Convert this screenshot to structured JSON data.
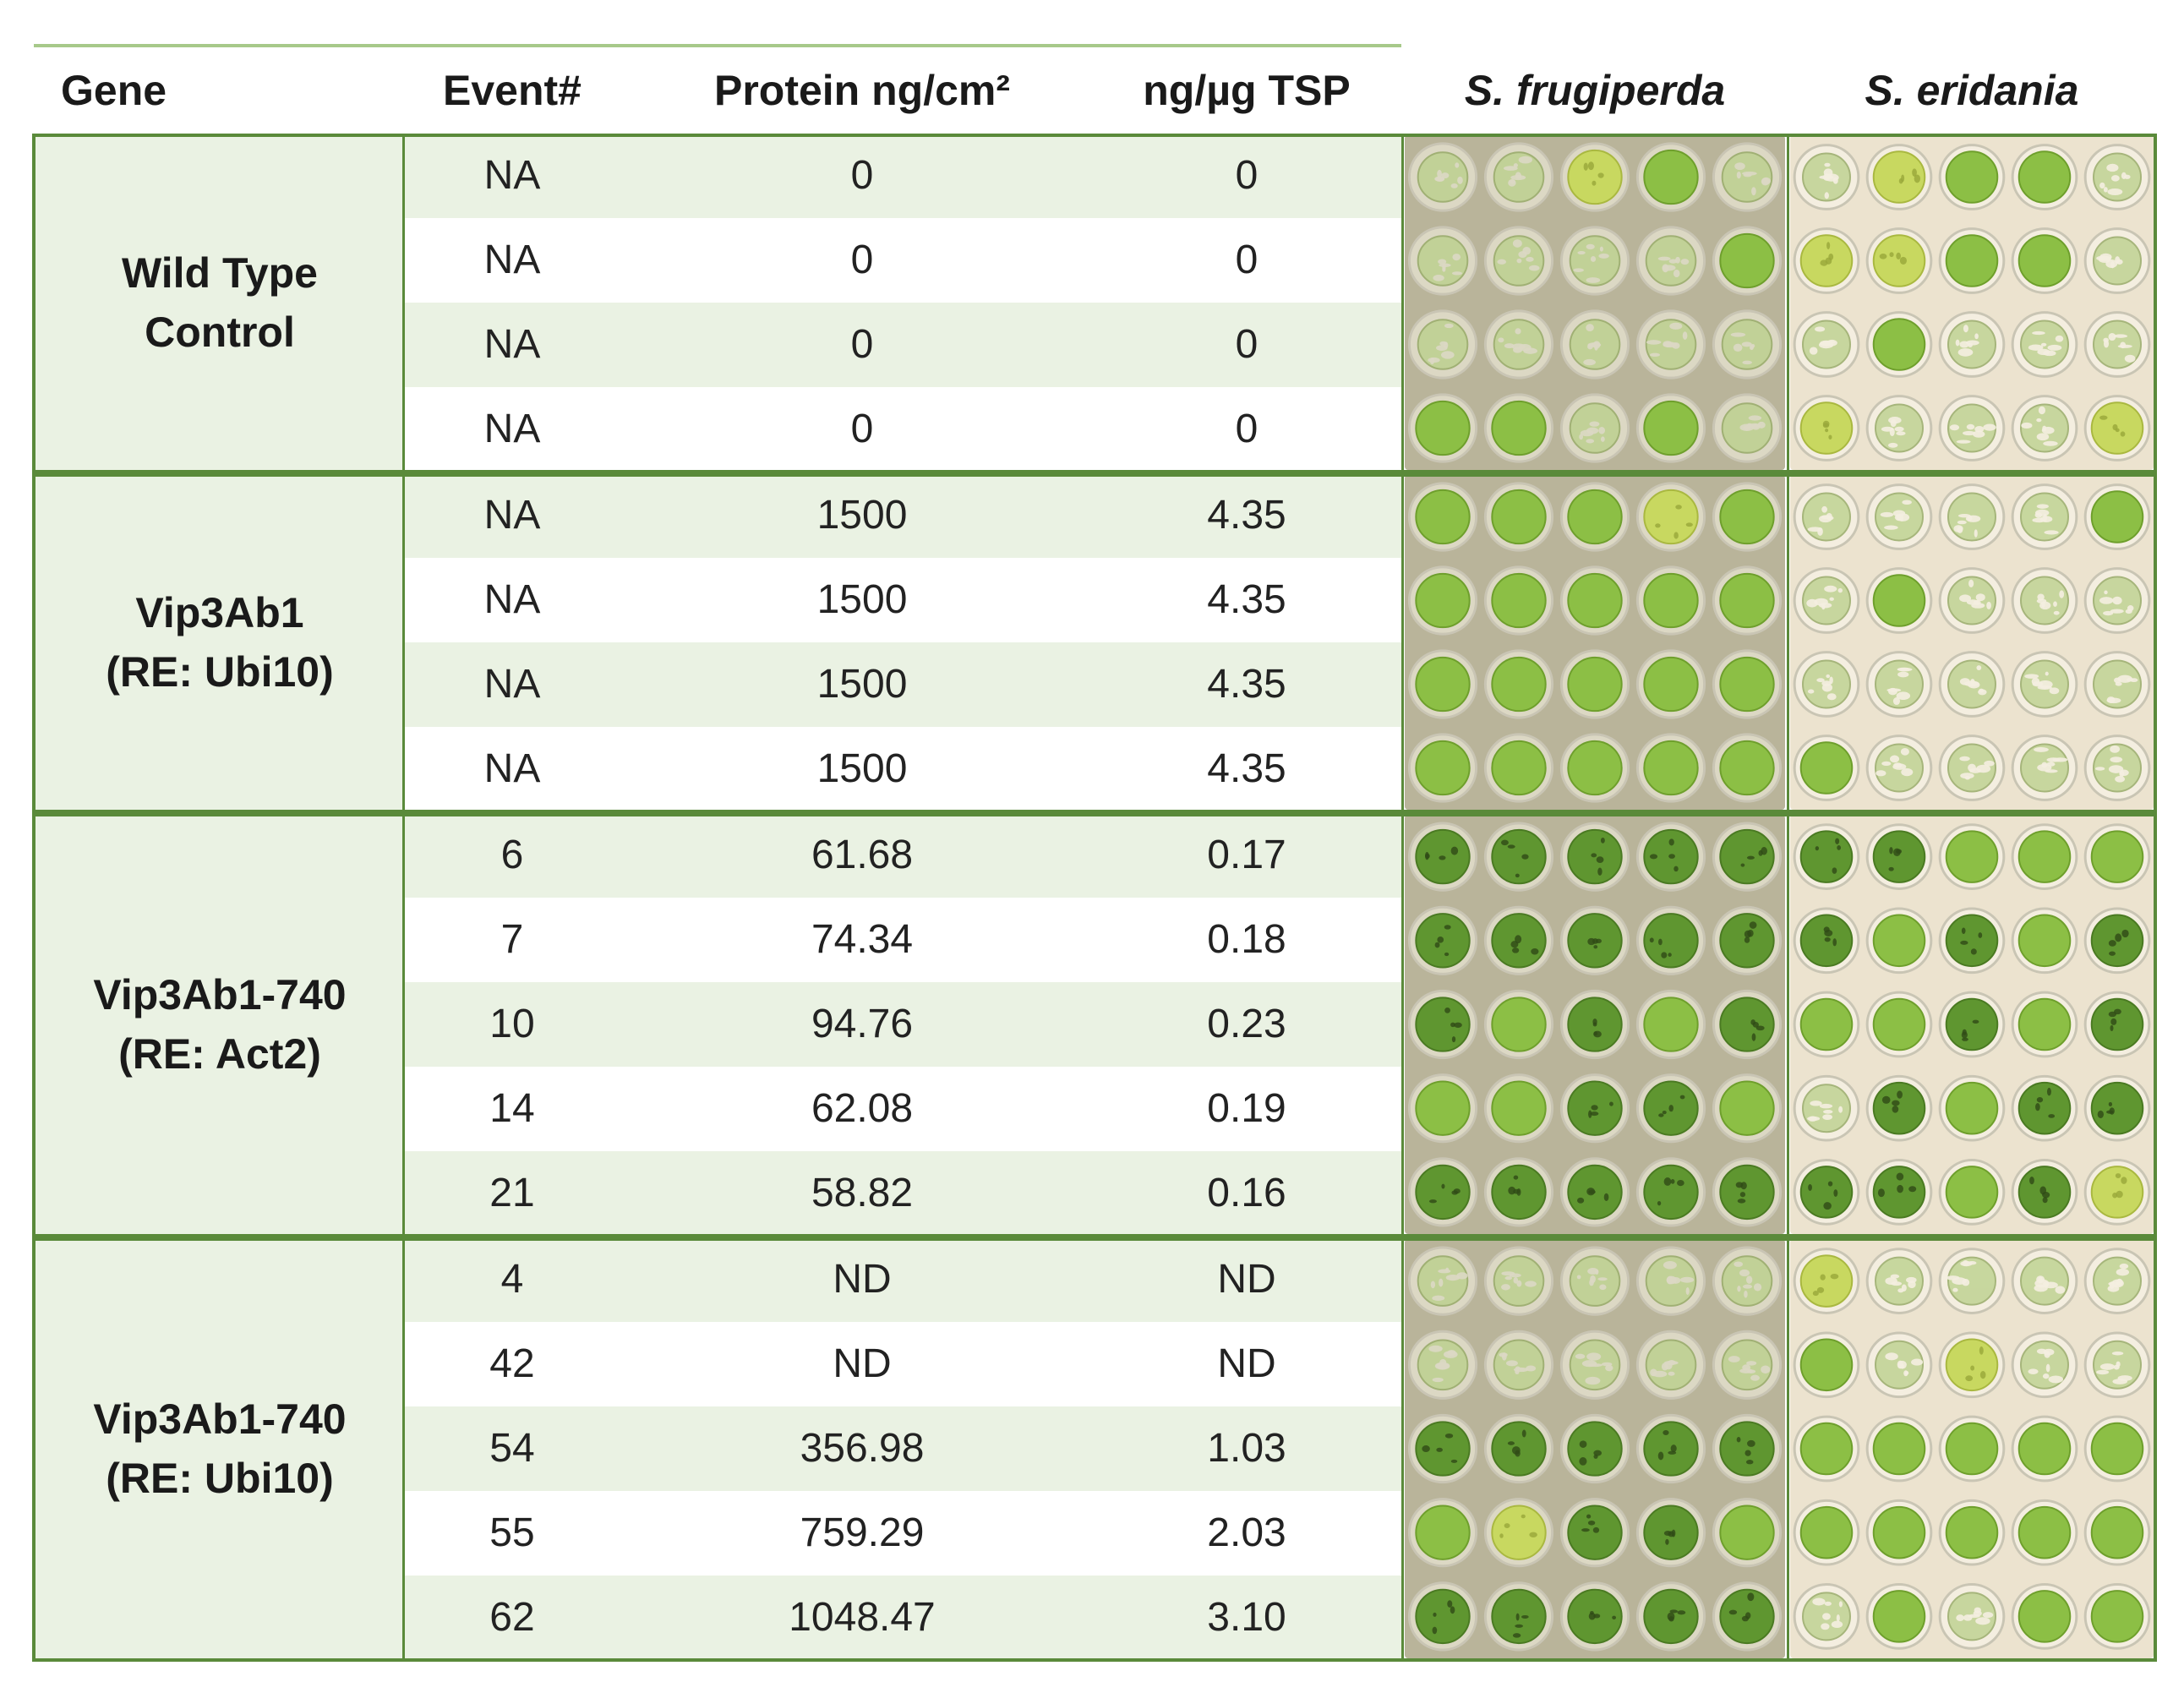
{
  "headers": {
    "gene": "Gene",
    "event": "Event#",
    "protein": "Protein ng/cm²",
    "ng_ug": "ng/µg TSP",
    "species1": "S. frugiperda",
    "species2": "S. eridania"
  },
  "groups": [
    {
      "line1": "Wild Type",
      "line2": "Control",
      "rows": [
        {
          "event": "NA",
          "protein": "0",
          "ng_ug": "0"
        },
        {
          "event": "NA",
          "protein": "0",
          "ng_ug": "0"
        },
        {
          "event": "NA",
          "protein": "0",
          "ng_ug": "0"
        },
        {
          "event": "NA",
          "protein": "0",
          "ng_ug": "0"
        }
      ],
      "frug_leaf": [
        "eaten",
        "eaten",
        "yellow",
        "whole",
        "eaten",
        "eaten",
        "eaten",
        "eaten",
        "eaten",
        "whole",
        "eaten",
        "eaten",
        "eaten",
        "eaten",
        "eaten",
        "whole",
        "whole",
        "eaten",
        "whole",
        "eaten"
      ],
      "erid_leaf": [
        "eaten",
        "yellow",
        "whole",
        "whole",
        "eaten",
        "yellow",
        "yellow",
        "whole",
        "whole",
        "eaten",
        "eaten",
        "whole",
        "eaten",
        "eaten",
        "eaten",
        "yellow",
        "eaten",
        "eaten",
        "eaten",
        "yellow"
      ]
    },
    {
      "line1": "Vip3Ab1",
      "line2": "(RE: Ubi10)",
      "rows": [
        {
          "event": "NA",
          "protein": "1500",
          "ng_ug": "4.35"
        },
        {
          "event": "NA",
          "protein": "1500",
          "ng_ug": "4.35"
        },
        {
          "event": "NA",
          "protein": "1500",
          "ng_ug": "4.35"
        },
        {
          "event": "NA",
          "protein": "1500",
          "ng_ug": "4.35"
        }
      ],
      "frug_leaf": [
        "whole",
        "whole",
        "whole",
        "yellow",
        "whole",
        "whole",
        "whole",
        "whole",
        "whole",
        "whole",
        "whole",
        "whole",
        "whole",
        "whole",
        "whole",
        "whole",
        "whole",
        "whole",
        "whole",
        "whole"
      ],
      "erid_leaf": [
        "eaten",
        "eaten",
        "eaten",
        "eaten",
        "whole",
        "eaten",
        "whole",
        "eaten",
        "eaten",
        "eaten",
        "eaten",
        "eaten",
        "eaten",
        "eaten",
        "eaten",
        "whole",
        "eaten",
        "eaten",
        "eaten",
        "eaten"
      ]
    },
    {
      "line1": "Vip3Ab1-740",
      "line2": "(RE: Act2)",
      "rows": [
        {
          "event": "6",
          "protein": "61.68",
          "ng_ug": "0.17"
        },
        {
          "event": "7",
          "protein": "74.34",
          "ng_ug": "0.18"
        },
        {
          "event": "10",
          "protein": "94.76",
          "ng_ug": "0.23"
        },
        {
          "event": "14",
          "protein": "62.08",
          "ng_ug": "0.19"
        },
        {
          "event": "21",
          "protein": "58.82",
          "ng_ug": "0.16"
        }
      ],
      "frug_leaf": [
        "dark",
        "dark",
        "dark",
        "dark",
        "dark",
        "dark",
        "dark",
        "dark",
        "dark",
        "dark",
        "dark",
        "whole",
        "dark",
        "whole",
        "dark",
        "whole",
        "whole",
        "dark",
        "dark",
        "whole",
        "dark",
        "dark",
        "dark",
        "dark",
        "dark"
      ],
      "erid_leaf": [
        "dark",
        "dark",
        "whole",
        "whole",
        "whole",
        "dark",
        "whole",
        "dark",
        "whole",
        "dark",
        "whole",
        "whole",
        "dark",
        "whole",
        "dark",
        "eaten",
        "dark",
        "whole",
        "dark",
        "dark",
        "dark",
        "dark",
        "whole",
        "dark",
        "yellow"
      ]
    },
    {
      "line1": "Vip3Ab1-740",
      "line2": "(RE: Ubi10)",
      "rows": [
        {
          "event": "4",
          "protein": "ND",
          "ng_ug": "ND"
        },
        {
          "event": "42",
          "protein": "ND",
          "ng_ug": "ND"
        },
        {
          "event": "54",
          "protein": "356.98",
          "ng_ug": "1.03"
        },
        {
          "event": "55",
          "protein": "759.29",
          "ng_ug": "2.03"
        },
        {
          "event": "62",
          "protein": "1048.47",
          "ng_ug": "3.10"
        }
      ],
      "frug_leaf": [
        "eaten",
        "eaten",
        "eaten",
        "eaten",
        "eaten",
        "eaten",
        "eaten",
        "eaten",
        "eaten",
        "eaten",
        "dark",
        "dark",
        "dark",
        "dark",
        "dark",
        "whole",
        "yellow",
        "dark",
        "dark",
        "whole",
        "dark",
        "dark",
        "dark",
        "dark",
        "dark"
      ],
      "erid_leaf": [
        "yellow",
        "eaten",
        "eaten",
        "eaten",
        "eaten",
        "whole",
        "eaten",
        "yellow",
        "eaten",
        "eaten",
        "whole",
        "whole",
        "whole",
        "whole",
        "whole",
        "whole",
        "whole",
        "whole",
        "whole",
        "whole",
        "eaten",
        "whole",
        "eaten",
        "whole",
        "whole"
      ]
    }
  ],
  "colors": {
    "frame": "#5a8a3a",
    "stripe": "#eaf2e3",
    "frug_bg": "#b9b49a",
    "erid_bg": "#ece3cf"
  }
}
